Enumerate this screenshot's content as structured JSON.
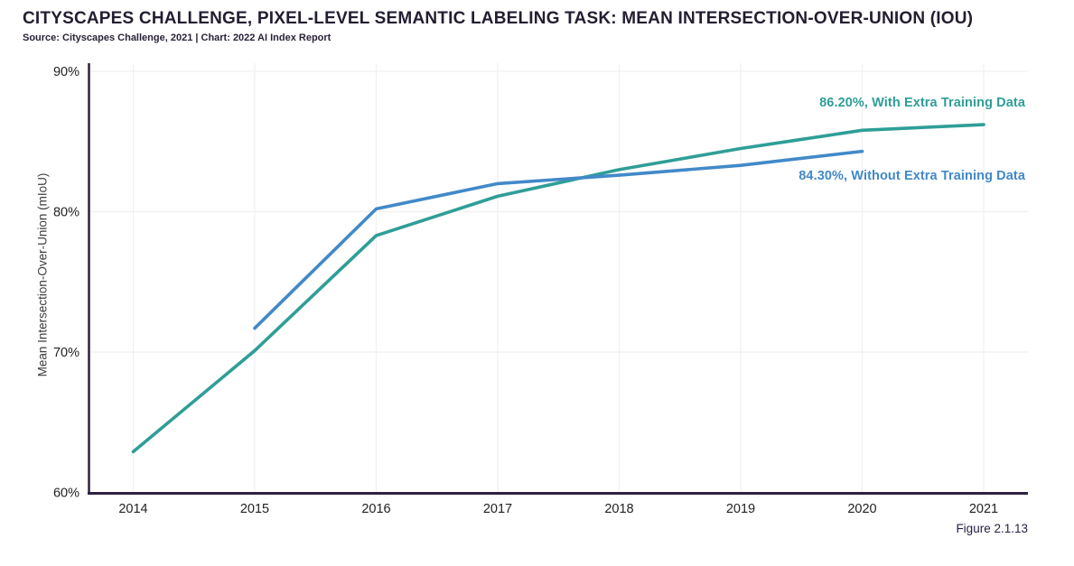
{
  "header": {
    "title": "CITYSCAPES CHALLENGE, PIXEL-LEVEL SEMANTIC LABELING TASK: MEAN INTERSECTION-OVER-UNION (IOU)",
    "source": "Source: Cityscapes Challenge, 2021 | Chart: 2022 AI Index Report"
  },
  "figure_label": "Figure 2.1.13",
  "colors": {
    "with_extra_line": "#2f9e97",
    "without_extra_line": "#4289c8",
    "axis": "#2e2140",
    "gridline": "#f1eff2",
    "tick_text": "#222222"
  },
  "chart_data": {
    "type": "line",
    "title": "CITYSCAPES CHALLENGE, PIXEL-LEVEL SEMANTIC LABELING TASK: MEAN INTERSECTION-OVER-UNION (IOU)",
    "xlabel": "",
    "ylabel": "Mean Intersection-Over-Union (mIoU)",
    "ylim": [
      60,
      90
    ],
    "xticks": [
      2014,
      2015,
      2016,
      2017,
      2018,
      2019,
      2020,
      2021
    ],
    "yticks": [
      60,
      70,
      80,
      90
    ],
    "ytick_labels": [
      "60%",
      "70%",
      "80%",
      "90%"
    ],
    "grid": true,
    "legend_position": "end-of-line-labels",
    "series": [
      {
        "name": "With Extra Training Data",
        "color": "#2f9e97",
        "x": [
          2014,
          2015,
          2016,
          2017,
          2018,
          2019,
          2020,
          2021
        ],
        "y": [
          62.9,
          70.1,
          78.3,
          81.1,
          83.0,
          84.5,
          85.8,
          86.2
        ],
        "final_value_pct": 86.2,
        "end_label": "86.20%, With Extra Training Data"
      },
      {
        "name": "Without Extra Training Data",
        "color": "#4289c8",
        "x": [
          2015,
          2016,
          2017,
          2018,
          2019,
          2020
        ],
        "y": [
          71.7,
          80.2,
          82.0,
          82.6,
          83.3,
          84.3
        ],
        "final_value_pct": 84.3,
        "end_label": "84.30%, Without Extra Training Data"
      }
    ]
  }
}
